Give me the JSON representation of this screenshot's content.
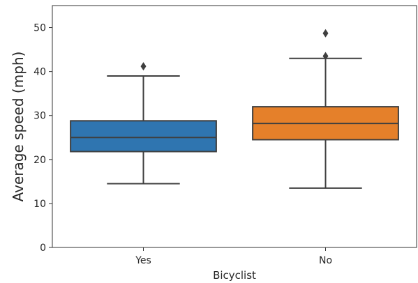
{
  "chart_data": {
    "type": "box",
    "xlabel": "Bicyclist",
    "ylabel": "Average speed (mph)",
    "ylim": [
      0,
      55
    ],
    "yticks": [
      0,
      10,
      20,
      30,
      40,
      50
    ],
    "grid": false,
    "categories": [
      "Yes",
      "No"
    ],
    "boxes": [
      {
        "category": "Yes",
        "color": "#2f75b0",
        "whisker_low": 14.5,
        "q1": 21.8,
        "median": 25.0,
        "q3": 28.8,
        "whisker_high": 39.0,
        "outliers": [
          41.2
        ]
      },
      {
        "category": "No",
        "color": "#e5802a",
        "whisker_low": 13.5,
        "q1": 24.5,
        "median": 28.2,
        "q3": 32.0,
        "whisker_high": 43.0,
        "outliers": [
          43.5,
          48.7
        ]
      }
    ]
  }
}
